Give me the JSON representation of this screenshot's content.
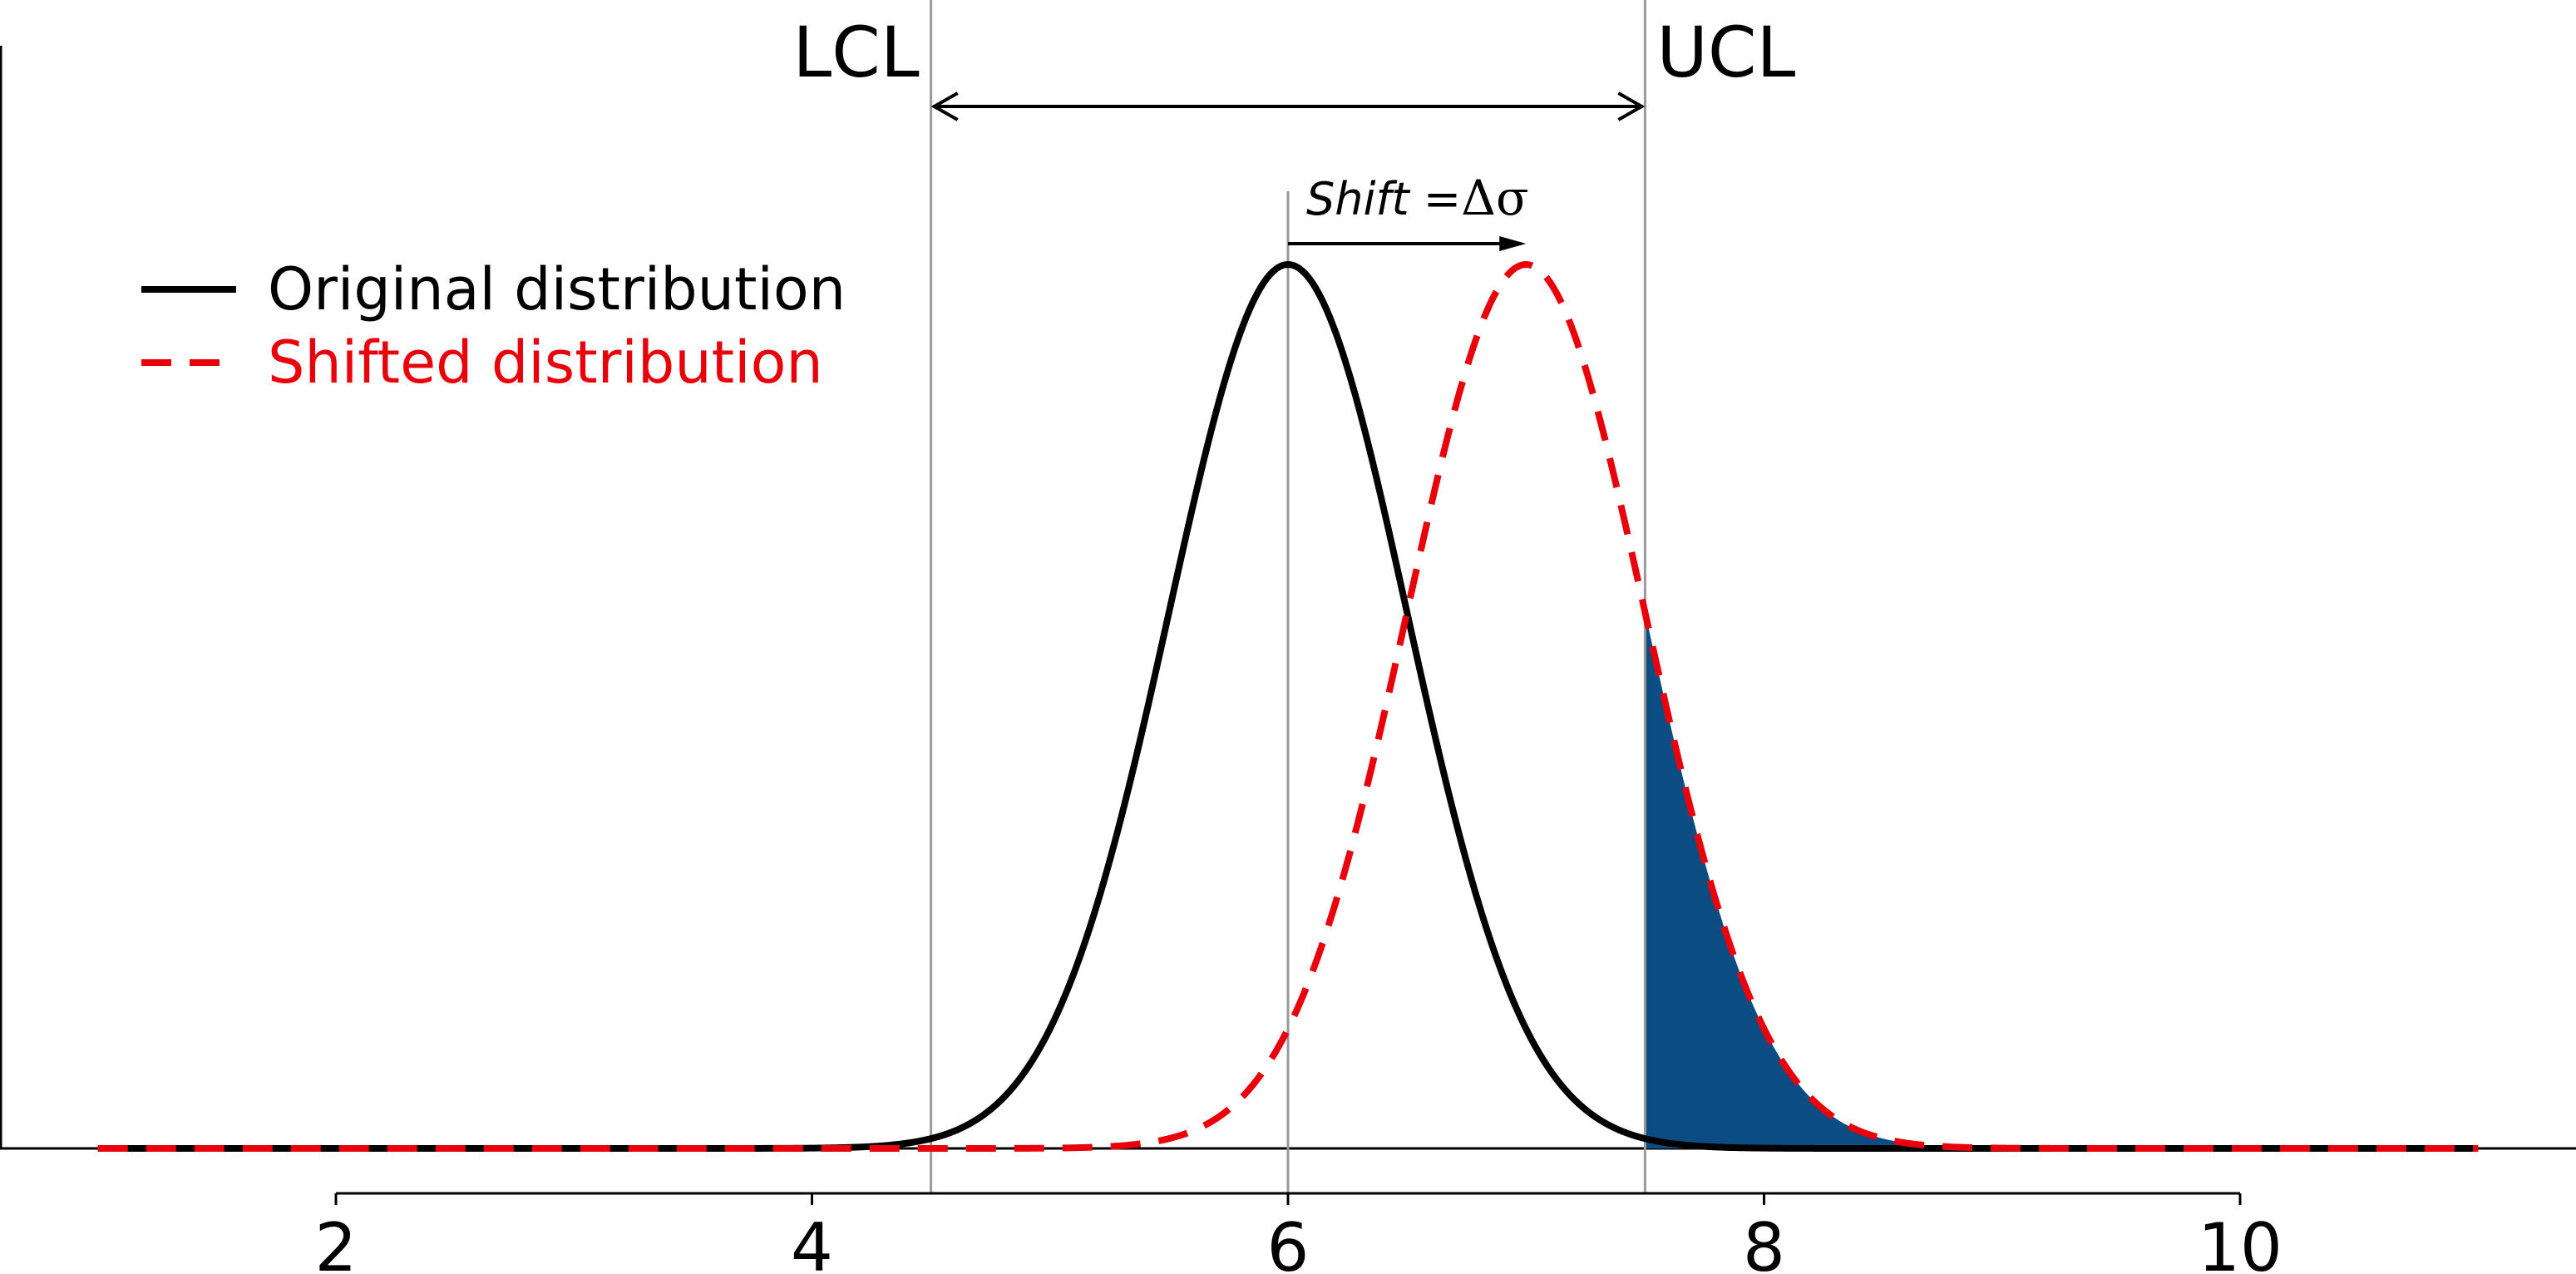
{
  "chart_data": {
    "type": "line",
    "xlim": [
      0.2,
      11.0
    ],
    "x_ticks": [
      2,
      4,
      6,
      8,
      10
    ],
    "x_tick_labels": [
      "2",
      "4",
      "6",
      "8",
      "10"
    ],
    "grid": false,
    "legend_position": "upper-left",
    "series": [
      {
        "name": "Original distribution",
        "distribution": "normal",
        "mean": 6.0,
        "sd": 0.5,
        "x_range": [
          1.0,
          11.0
        ],
        "color": "#000000",
        "line_style": "solid"
      },
      {
        "name": "Shifted distribution",
        "distribution": "normal",
        "mean": 7.0,
        "sd": 0.5,
        "x_range": [
          1.0,
          11.0
        ],
        "color": "#e8000b",
        "line_style": "dashed"
      }
    ],
    "control_limits": [
      {
        "label": "LCL",
        "x": 4.5
      },
      {
        "label": "UCL",
        "x": 7.5
      }
    ],
    "center_line_x": 6.0,
    "shaded_region": {
      "x_from": 7.5,
      "under_series": "Shifted distribution",
      "color": "#0b4c82"
    },
    "annotation": {
      "text_italic": "Shift",
      "text_suffix": " =",
      "text_symbol": "Δσ"
    }
  }
}
